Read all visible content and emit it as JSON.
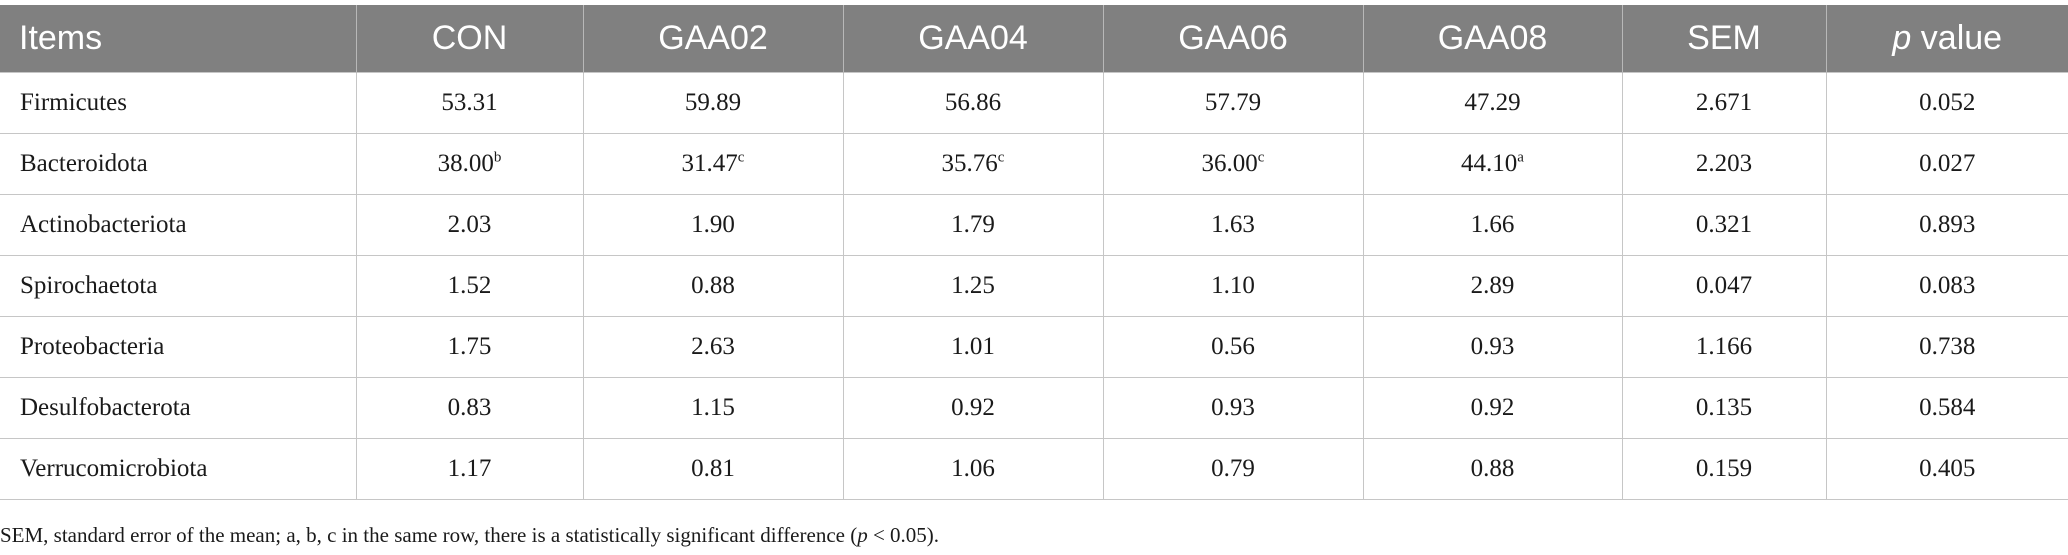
{
  "table": {
    "headers": [
      "Items",
      "CON",
      "GAA02",
      "GAA04",
      "GAA06",
      "GAA08",
      "SEM",
      "value"
    ],
    "p_value_prefix": "p",
    "rows": [
      {
        "item": "Firmicutes",
        "cells": [
          {
            "v": "53.31",
            "s": ""
          },
          {
            "v": "59.89",
            "s": ""
          },
          {
            "v": "56.86",
            "s": ""
          },
          {
            "v": "57.79",
            "s": ""
          },
          {
            "v": "47.29",
            "s": ""
          },
          {
            "v": "2.671",
            "s": ""
          },
          {
            "v": "0.052",
            "s": ""
          }
        ]
      },
      {
        "item": "Bacteroidota",
        "cells": [
          {
            "v": "38.00",
            "s": "b"
          },
          {
            "v": "31.47",
            "s": "c"
          },
          {
            "v": "35.76",
            "s": "c"
          },
          {
            "v": "36.00",
            "s": "c"
          },
          {
            "v": "44.10",
            "s": "a"
          },
          {
            "v": "2.203",
            "s": ""
          },
          {
            "v": "0.027",
            "s": ""
          }
        ]
      },
      {
        "item": "Actinobacteriota",
        "cells": [
          {
            "v": "2.03",
            "s": ""
          },
          {
            "v": "1.90",
            "s": ""
          },
          {
            "v": "1.79",
            "s": ""
          },
          {
            "v": "1.63",
            "s": ""
          },
          {
            "v": "1.66",
            "s": ""
          },
          {
            "v": "0.321",
            "s": ""
          },
          {
            "v": "0.893",
            "s": ""
          }
        ]
      },
      {
        "item": "Spirochaetota",
        "cells": [
          {
            "v": "1.52",
            "s": ""
          },
          {
            "v": "0.88",
            "s": ""
          },
          {
            "v": "1.25",
            "s": ""
          },
          {
            "v": "1.10",
            "s": ""
          },
          {
            "v": "2.89",
            "s": ""
          },
          {
            "v": "0.047",
            "s": ""
          },
          {
            "v": "0.083",
            "s": ""
          }
        ]
      },
      {
        "item": "Proteobacteria",
        "cells": [
          {
            "v": "1.75",
            "s": ""
          },
          {
            "v": "2.63",
            "s": ""
          },
          {
            "v": "1.01",
            "s": ""
          },
          {
            "v": "0.56",
            "s": ""
          },
          {
            "v": "0.93",
            "s": ""
          },
          {
            "v": "1.166",
            "s": ""
          },
          {
            "v": "0.738",
            "s": ""
          }
        ]
      },
      {
        "item": "Desulfobacterota",
        "cells": [
          {
            "v": "0.83",
            "s": ""
          },
          {
            "v": "1.15",
            "s": ""
          },
          {
            "v": "0.92",
            "s": ""
          },
          {
            "v": "0.93",
            "s": ""
          },
          {
            "v": "0.92",
            "s": ""
          },
          {
            "v": "0.135",
            "s": ""
          },
          {
            "v": "0.584",
            "s": ""
          }
        ]
      },
      {
        "item": "Verrucomicrobiota",
        "cells": [
          {
            "v": "1.17",
            "s": ""
          },
          {
            "v": "0.81",
            "s": ""
          },
          {
            "v": "1.06",
            "s": ""
          },
          {
            "v": "0.79",
            "s": ""
          },
          {
            "v": "0.88",
            "s": ""
          },
          {
            "v": "0.159",
            "s": ""
          },
          {
            "v": "0.405",
            "s": ""
          }
        ]
      }
    ]
  },
  "footnote": {
    "text_before": "SEM, standard error of the mean; a, b, c in the same row, there is a statistically significant difference (",
    "p": "p",
    "text_after": " < 0.05)."
  },
  "colors": {
    "header_bg": "#808080",
    "header_text": "#ffffff",
    "grid": "#c6c6c6"
  }
}
